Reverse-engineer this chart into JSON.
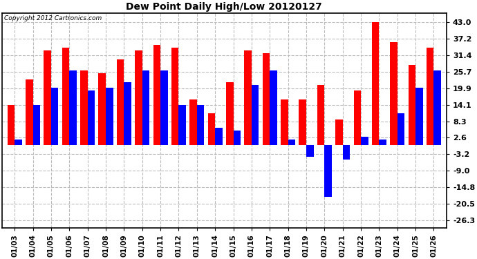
{
  "title": "Dew Point Daily High/Low 20120127",
  "copyright": "Copyright 2012 Cartronics.com",
  "dates": [
    "01/03",
    "01/04",
    "01/05",
    "01/06",
    "01/07",
    "01/08",
    "01/09",
    "01/10",
    "01/11",
    "01/12",
    "01/13",
    "01/14",
    "01/15",
    "01/16",
    "01/17",
    "01/18",
    "01/19",
    "01/20",
    "01/21",
    "01/22",
    "01/23",
    "01/24",
    "01/25",
    "01/26"
  ],
  "high": [
    14.0,
    23.0,
    33.0,
    34.0,
    26.0,
    25.0,
    30.0,
    33.0,
    35.0,
    34.0,
    16.0,
    11.0,
    22.0,
    33.0,
    32.0,
    16.0,
    16.0,
    21.0,
    9.0,
    19.0,
    43.0,
    36.0,
    28.0,
    34.0
  ],
  "low": [
    2.0,
    14.0,
    20.0,
    26.0,
    19.0,
    20.0,
    22.0,
    26.0,
    26.0,
    14.0,
    14.0,
    6.0,
    5.0,
    21.0,
    26.0,
    2.0,
    -4.0,
    -18.0,
    -5.0,
    3.0,
    2.0,
    11.0,
    20.0,
    26.0
  ],
  "high_color": "#ff0000",
  "low_color": "#0000ff",
  "background_color": "#ffffff",
  "grid_color": "#bbbbbb",
  "yticks": [
    43.0,
    37.2,
    31.4,
    25.7,
    19.9,
    14.1,
    8.3,
    2.6,
    -3.2,
    -9.0,
    -14.8,
    -20.5,
    -26.3
  ],
  "ylim": [
    -29,
    46
  ],
  "bar_width": 0.4
}
